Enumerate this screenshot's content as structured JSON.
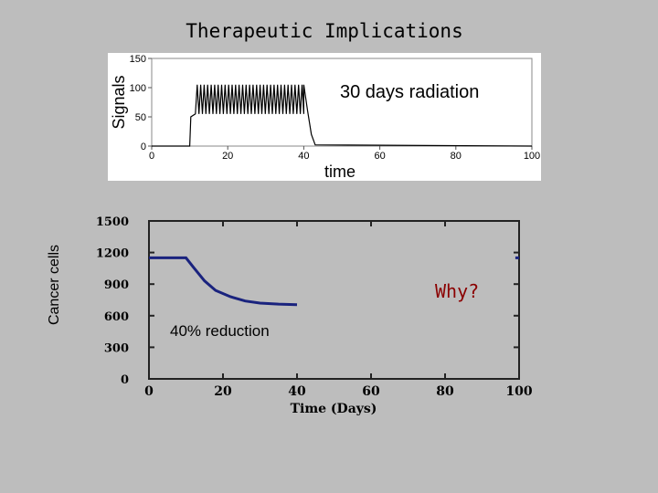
{
  "slide_title": "Therapeutic Implications",
  "annotations": {
    "radiation": "30 days radiation",
    "reduction": "40% reduction",
    "why": "Why?"
  },
  "colors": {
    "background": "#bdbdbd",
    "why": "#8b0000",
    "cancer_line": "#1a237e"
  },
  "chart_data": [
    {
      "type": "line",
      "title": "",
      "xlabel": "time",
      "ylabel": "Signals",
      "xlim": [
        0,
        100
      ],
      "ylim": [
        0,
        150
      ],
      "xticks": [
        "0",
        "20",
        "40",
        "60",
        "80",
        "100"
      ],
      "yticks": [
        "0",
        "50",
        "100",
        "150"
      ],
      "grid": false,
      "series": [
        {
          "description_of_shape": "baseline 0 until day 10, step to ~55, oscillation between ~55 and ~105 (about 31 peaks) until day 40, then decay to 0",
          "x": [
            0,
            10,
            10.3,
            11.5,
            40,
            41,
            42,
            43,
            100
          ],
          "y": [
            0,
            0,
            50,
            55,
            105,
            60,
            20,
            2,
            0
          ],
          "oscillation": {
            "x_start": 11.5,
            "x_end": 40,
            "peaks": 31,
            "low": 55,
            "high": 105
          }
        }
      ]
    },
    {
      "type": "line",
      "title": "",
      "xlabel": "Time (Days)",
      "ylabel": "Cancer cells",
      "xlim": [
        0,
        100
      ],
      "ylim": [
        0,
        1500
      ],
      "xticks": [
        "0",
        "20",
        "40",
        "60",
        "80",
        "100"
      ],
      "yticks": [
        "0",
        "300",
        "600",
        "900",
        "1200",
        "1500"
      ],
      "grid": false,
      "series": [
        {
          "x": [
            0,
            10,
            12,
            15,
            18,
            22,
            26,
            30,
            35,
            40
          ],
          "y": [
            1150,
            1150,
            1060,
            930,
            840,
            780,
            740,
            720,
            710,
            705
          ]
        },
        {
          "x": [
            99,
            100
          ],
          "y": [
            1150,
            1150
          ]
        }
      ]
    }
  ]
}
